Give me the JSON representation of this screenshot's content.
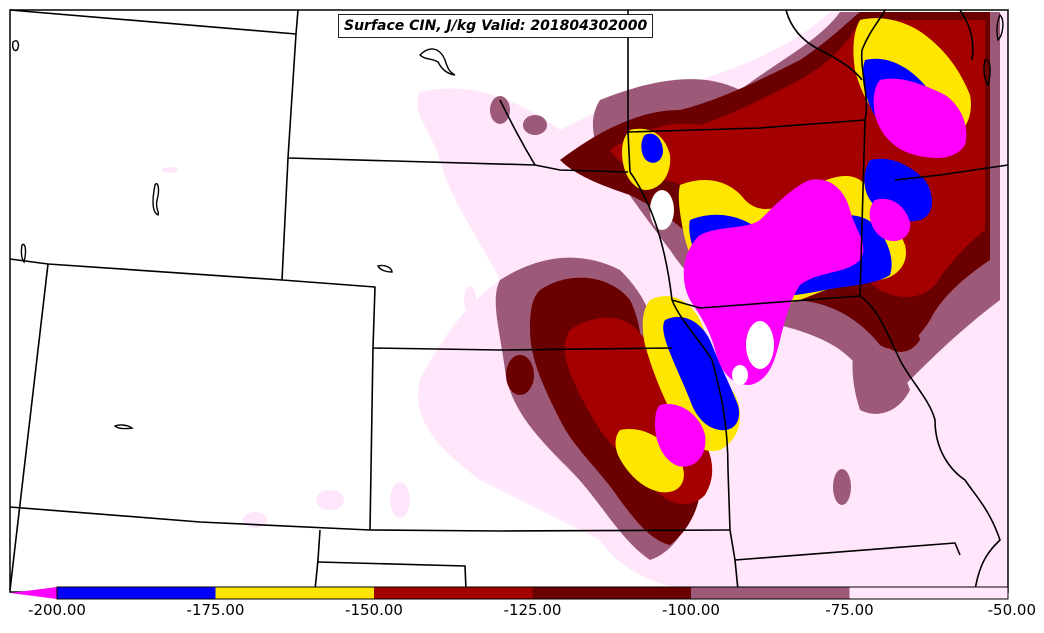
{
  "title": "Surface CIN, J/kg Valid: 201804302000",
  "colors": {
    "background": "#ffffff",
    "borders": "#000000",
    "level_1": "#ff00ff",
    "level_2": "#0000ff",
    "level_3": "#ffe600",
    "level_4": "#a50000",
    "level_5": "#6b0000",
    "level_6": "#9c5a78",
    "level_7": "#ffe6fa"
  },
  "colorbar": {
    "tick_labels": [
      "-200.00",
      "-175.00",
      "-150.00",
      "-125.00",
      "-100.00",
      "-75.00",
      "-50.00"
    ],
    "bins": [
      {
        "from": "-200.00",
        "to": "-175.00",
        "color": "#0000ff"
      },
      {
        "from": "-175.00",
        "to": "-150.00",
        "color": "#ffe600"
      },
      {
        "from": "-150.00",
        "to": "-125.00",
        "color": "#a50000"
      },
      {
        "from": "-125.00",
        "to": "-100.00",
        "color": "#6b0000"
      },
      {
        "from": "-100.00",
        "to": "-75.00",
        "color": "#9c5a78"
      },
      {
        "from": "-75.00",
        "to": "-50.00",
        "color": "#ffe6fa"
      }
    ],
    "extend_below_color": "#ff00ff"
  }
}
